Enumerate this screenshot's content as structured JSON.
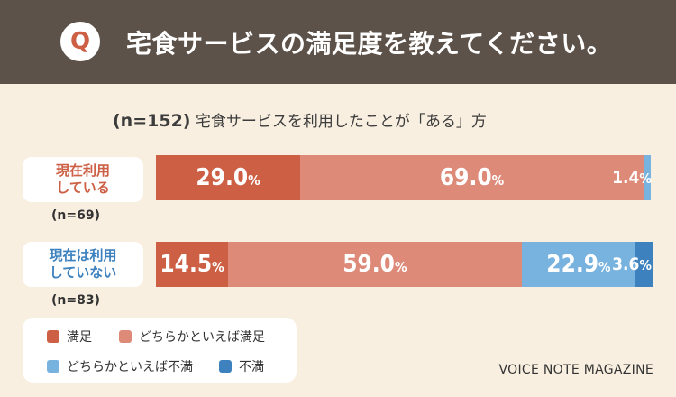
{
  "header": {
    "q_badge": "Q",
    "title": "宅食サービスの満足度を教えてください。"
  },
  "subtitle": {
    "n": "(n=152)",
    "text": "宅食サービスを利用したことが「ある」方"
  },
  "colors": {
    "satisfied": "#cc5f44",
    "somewhat_satisfied": "#dd8a79",
    "somewhat_dissatisfied": "#78b2df",
    "dissatisfied": "#3d82be",
    "header_bg": "#5d524a",
    "page_bg": "#f8efe0"
  },
  "legend": [
    {
      "label": "満足",
      "color": "#cc5f44"
    },
    {
      "label": "どちらかといえば満足",
      "color": "#dd8a79"
    },
    {
      "label": "どちらかといえば不満",
      "color": "#78b2df"
    },
    {
      "label": "不満",
      "color": "#3d82be"
    }
  ],
  "brand": "VOICE NOTE MAGAZINE",
  "chart_data": {
    "type": "bar",
    "orientation": "horizontal",
    "stacked": true,
    "percent_sign": "%",
    "categories": [
      {
        "line1": "現在利用",
        "line2": "している",
        "n": "(n=69)",
        "color": "#cc5f44"
      },
      {
        "line1": "現在は利用",
        "line2": "していない",
        "n": "(n=83)",
        "color": "#3d82be"
      }
    ],
    "series": [
      {
        "name": "満足",
        "color": "#cc5f44",
        "values": [
          29.0,
          14.5
        ]
      },
      {
        "name": "どちらかといえば満足",
        "color": "#dd8a79",
        "values": [
          69.0,
          59.0
        ]
      },
      {
        "name": "どちらかといえば不満",
        "color": "#78b2df",
        "values": [
          1.4,
          22.9
        ]
      },
      {
        "name": "不満",
        "color": "#3d82be",
        "values": [
          0.0,
          3.6
        ]
      }
    ],
    "value_labels": [
      [
        "29.0",
        "69.0",
        "1.4",
        ""
      ],
      [
        "14.5",
        "59.0",
        "22.9",
        "3.6"
      ]
    ],
    "xlim": [
      0,
      100
    ]
  }
}
